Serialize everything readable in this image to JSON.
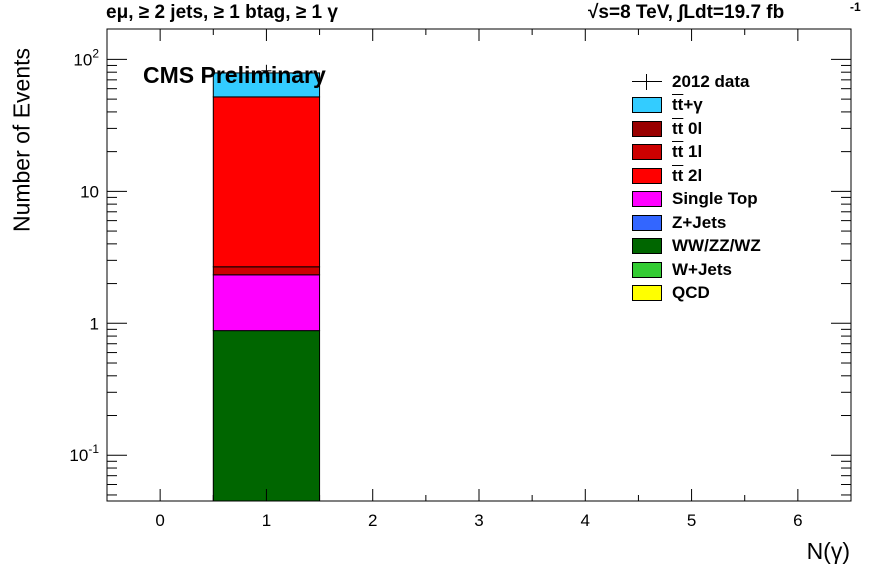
{
  "header": {
    "selection": "eμ, ≥ 2 jets, ≥ 1 btag, ≥ 1 γ",
    "energy": "√s=8 TeV,",
    "lumi": "∫Ldt=19.7 fb",
    "lumi_exp": "-1"
  },
  "annotation": "CMS Preliminary",
  "colors": {
    "tt_gamma": "#33ccff",
    "tt_0l": "#990000",
    "tt_1l": "#cc0000",
    "tt_2l": "#ff0000",
    "single_top": "#ff00ff",
    "z_jets": "#3366ff",
    "ww_zz_wz": "#006600",
    "w_jets": "#33cc33",
    "qcd": "#ffff00"
  },
  "chart_data": {
    "type": "bar",
    "stacked": true,
    "log_y": true,
    "xlabel": "N(γ)",
    "ylabel": "Number of Events",
    "xlim": [
      -0.5,
      6.5
    ],
    "ylim": [
      0.045,
      170
    ],
    "x_ticks": [
      "0",
      "1",
      "2",
      "3",
      "4",
      "5",
      "6"
    ],
    "y_ticks": [
      {
        "value": 0.1,
        "base": "10",
        "exp": "-1"
      },
      {
        "value": 1,
        "base": "1",
        "exp": ""
      },
      {
        "value": 10,
        "base": "10",
        "exp": ""
      },
      {
        "value": 100,
        "base": "10",
        "exp": "2"
      }
    ],
    "bin_edges": [
      0.5,
      1.5
    ],
    "series": [
      {
        "name": "QCD",
        "key": "qcd",
        "values": [
          0
        ]
      },
      {
        "name": "W+Jets",
        "key": "w_jets",
        "values": [
          0
        ]
      },
      {
        "name": "WW/ZZ/WZ",
        "key": "ww_zz_wz",
        "values": [
          0.88
        ]
      },
      {
        "name": "Z+Jets",
        "key": "z_jets",
        "values": [
          0
        ]
      },
      {
        "name": "Single Top",
        "key": "single_top",
        "values": [
          1.45
        ]
      },
      {
        "name": "tt 2l",
        "key": "tt_2l",
        "values": [
          0
        ]
      },
      {
        "name": "tt 1l",
        "key": "tt_1l",
        "values": [
          0.35
        ]
      },
      {
        "name": "tt 0l",
        "key": "tt_0l",
        "values": [
          0
        ]
      },
      {
        "name": "tt 2l",
        "key": "tt_2l_main",
        "values": [
          49.3
        ]
      },
      {
        "name": "tt+γ",
        "key": "tt_gamma",
        "values": [
          27
        ]
      }
    ],
    "data_points": [
      {
        "x": 1,
        "y": 82
      }
    ],
    "legend": {
      "position": "top-right",
      "data_label": "2012 data",
      "entries": [
        {
          "label": "tt+γ",
          "tt": true,
          "rest": "+γ",
          "color_key": "tt_gamma"
        },
        {
          "label": "tt 0l",
          "tt": true,
          "rest": " 0l",
          "color_key": "tt_0l"
        },
        {
          "label": "tt 1l",
          "tt": true,
          "rest": " 1l",
          "color_key": "tt_1l"
        },
        {
          "label": "tt 2l",
          "tt": true,
          "rest": " 2l",
          "color_key": "tt_2l"
        },
        {
          "label": "Single Top",
          "tt": false,
          "rest": "Single Top",
          "color_key": "single_top"
        },
        {
          "label": "Z+Jets",
          "tt": false,
          "rest": "Z+Jets",
          "color_key": "z_jets"
        },
        {
          "label": "WW/ZZ/WZ",
          "tt": false,
          "rest": "WW/ZZ/WZ",
          "color_key": "ww_zz_wz"
        },
        {
          "label": "W+Jets",
          "tt": false,
          "rest": "W+Jets",
          "color_key": "w_jets"
        },
        {
          "label": "QCD",
          "tt": false,
          "rest": "QCD",
          "color_key": "qcd"
        }
      ]
    }
  }
}
